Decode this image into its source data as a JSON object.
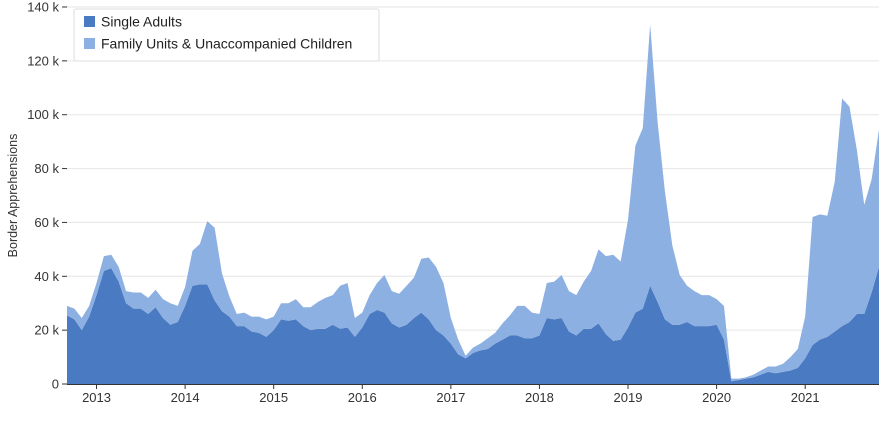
{
  "chart_data": {
    "type": "area",
    "stacked": true,
    "ylabel": "Border Apprehensions",
    "xlabel": "",
    "ylim": [
      0,
      140000
    ],
    "yticks": [
      0,
      20000,
      40000,
      60000,
      80000,
      100000,
      120000,
      140000
    ],
    "ytick_labels": [
      "0",
      "20 k",
      "40 k",
      "60 k",
      "80 k",
      "100 k",
      "120 k",
      "140 k"
    ],
    "xlim": [
      "2012-09",
      "2021-11"
    ],
    "xticks": [
      "2013-01",
      "2014-01",
      "2015-01",
      "2016-01",
      "2017-01",
      "2018-01",
      "2019-01",
      "2020-01",
      "2021-01"
    ],
    "xtick_labels": [
      "2013",
      "2014",
      "2015",
      "2016",
      "2017",
      "2018",
      "2019",
      "2020",
      "2021"
    ],
    "grid": true,
    "legend_position": "top-left",
    "x": [
      "2012-09",
      "2012-10",
      "2012-11",
      "2012-12",
      "2013-01",
      "2013-02",
      "2013-03",
      "2013-04",
      "2013-05",
      "2013-06",
      "2013-07",
      "2013-08",
      "2013-09",
      "2013-10",
      "2013-11",
      "2013-12",
      "2014-01",
      "2014-02",
      "2014-03",
      "2014-04",
      "2014-05",
      "2014-06",
      "2014-07",
      "2014-08",
      "2014-09",
      "2014-10",
      "2014-11",
      "2014-12",
      "2015-01",
      "2015-02",
      "2015-03",
      "2015-04",
      "2015-05",
      "2015-06",
      "2015-07",
      "2015-08",
      "2015-09",
      "2015-10",
      "2015-11",
      "2015-12",
      "2016-01",
      "2016-02",
      "2016-03",
      "2016-04",
      "2016-05",
      "2016-06",
      "2016-07",
      "2016-08",
      "2016-09",
      "2016-10",
      "2016-11",
      "2016-12",
      "2017-01",
      "2017-02",
      "2017-03",
      "2017-04",
      "2017-05",
      "2017-06",
      "2017-07",
      "2017-08",
      "2017-09",
      "2017-10",
      "2017-11",
      "2017-12",
      "2018-01",
      "2018-02",
      "2018-03",
      "2018-04",
      "2018-05",
      "2018-06",
      "2018-07",
      "2018-08",
      "2018-09",
      "2018-10",
      "2018-11",
      "2018-12",
      "2019-01",
      "2019-02",
      "2019-03",
      "2019-04",
      "2019-05",
      "2019-06",
      "2019-07",
      "2019-08",
      "2019-09",
      "2019-10",
      "2019-11",
      "2019-12",
      "2020-01",
      "2020-02",
      "2020-03",
      "2020-04",
      "2020-05",
      "2020-06",
      "2020-07",
      "2020-08",
      "2020-09",
      "2020-10",
      "2020-11",
      "2020-12",
      "2021-01",
      "2021-02",
      "2021-03",
      "2021-04",
      "2021-05",
      "2021-06",
      "2021-07",
      "2021-08",
      "2021-09",
      "2021-10",
      "2021-11"
    ],
    "series": [
      {
        "name": "Single Adults",
        "color": "#4a7ac2",
        "values": [
          25500,
          24000,
          20000,
          25000,
          33000,
          42000,
          43000,
          38000,
          30000,
          28000,
          28000,
          26000,
          28500,
          24500,
          22000,
          23000,
          29000,
          36500,
          37000,
          37000,
          31000,
          27000,
          25000,
          21500,
          21500,
          19500,
          19000,
          17500,
          20000,
          24000,
          23500,
          24000,
          21500,
          20000,
          20500,
          20500,
          22000,
          20500,
          21000,
          17500,
          21000,
          26000,
          27500,
          26500,
          22500,
          21000,
          22000,
          24500,
          26500,
          24000,
          20000,
          18000,
          15000,
          11000,
          9500,
          11500,
          12500,
          13000,
          15000,
          16500,
          18000,
          18000,
          17000,
          17000,
          18000,
          24500,
          24000,
          24500,
          19500,
          18000,
          20500,
          20500,
          22500,
          18500,
          16000,
          16500,
          21000,
          26500,
          28000,
          36500,
          30500,
          24000,
          22000,
          22000,
          23000,
          21500,
          21500,
          21500,
          22000,
          16500,
          1000,
          1500,
          2000,
          2500,
          3500,
          4500,
          4000,
          4500,
          5000,
          6000,
          9500,
          14500,
          16500,
          17500,
          19500,
          21500,
          23000,
          26000,
          26000,
          34000,
          43500
        ]
      },
      {
        "name": "Family Units & Unaccompanied Children",
        "color": "#8db0e2",
        "values": [
          3500,
          4000,
          4500,
          4000,
          4500,
          5500,
          5000,
          5500,
          4500,
          6000,
          6000,
          6000,
          6500,
          7000,
          8000,
          6000,
          7000,
          13000,
          15000,
          23500,
          27000,
          14000,
          7500,
          4500,
          5000,
          5500,
          6000,
          6500,
          5000,
          6000,
          6500,
          7500,
          7000,
          8500,
          10000,
          11500,
          11000,
          16000,
          16500,
          7000,
          5500,
          7000,
          10000,
          14000,
          12000,
          12500,
          14500,
          15000,
          20000,
          23000,
          23500,
          19500,
          9500,
          5500,
          1000,
          2000,
          2500,
          4000,
          4000,
          6000,
          7500,
          11000,
          12000,
          9500,
          8000,
          13000,
          14000,
          16000,
          15000,
          15000,
          17500,
          21500,
          27500,
          29000,
          32000,
          29000,
          40000,
          62000,
          67000,
          97000,
          67000,
          47500,
          29500,
          18500,
          13500,
          13000,
          11500,
          11500,
          9500,
          12500,
          1000,
          500,
          500,
          1000,
          1500,
          2000,
          2500,
          3000,
          5000,
          7000,
          15500,
          47500,
          46500,
          45000,
          55500,
          84500,
          80000,
          61000,
          40500,
          42000,
          51000
        ]
      }
    ]
  }
}
